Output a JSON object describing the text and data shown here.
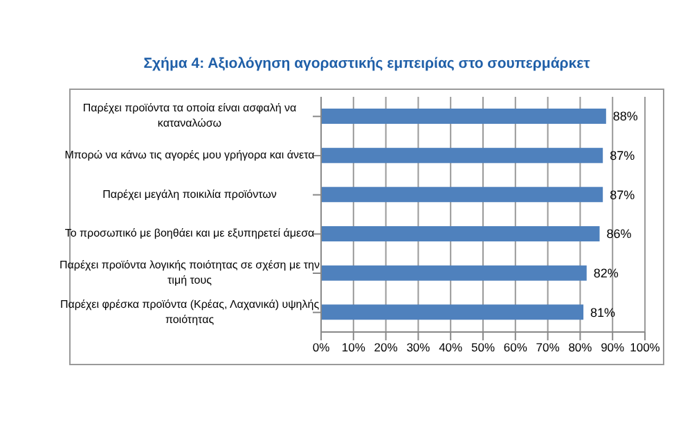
{
  "chart_data": {
    "type": "bar",
    "orientation": "horizontal",
    "title": "Σχήμα 4: Αξιολόγηση αγοραστικής εμπειρίας στο σουπερμάρκετ",
    "categories": [
      "Παρέχει προϊόντα τα οποία είναι ασφαλή να καταναλώσω",
      "Μπορώ να κάνω τις αγορές μου γρήγορα και άνετα",
      "Παρέχει μεγάλη ποικιλία προϊόντων",
      "Το προσωπικό με βοηθάει και με εξυπηρετεί άμεσα",
      "Παρέχει προϊόντα λογικής ποιότητας σε σχέση με την τιμή τους",
      "Παρέχει φρέσκα προϊόντα (Κρέας, Λαχανικά) υψηλής ποιότητας"
    ],
    "values": [
      88,
      87,
      87,
      86,
      82,
      81
    ],
    "value_labels": [
      "88%",
      "87%",
      "87%",
      "86%",
      "82%",
      "81%"
    ],
    "color": "#4f81bd",
    "xlim": [
      0,
      100
    ],
    "xticks": [
      {
        "value": 0,
        "label": "0%"
      },
      {
        "value": 10,
        "label": "10%"
      },
      {
        "value": 20,
        "label": "20%"
      },
      {
        "value": 30,
        "label": "30%"
      },
      {
        "value": 40,
        "label": "40%"
      },
      {
        "value": 50,
        "label": "50%"
      },
      {
        "value": 60,
        "label": "60%"
      },
      {
        "value": 70,
        "label": "70%"
      },
      {
        "value": 80,
        "label": "80%"
      },
      {
        "value": 90,
        "label": "90%"
      },
      {
        "value": 100,
        "label": "100%"
      }
    ],
    "grid": "x",
    "legend": false
  }
}
